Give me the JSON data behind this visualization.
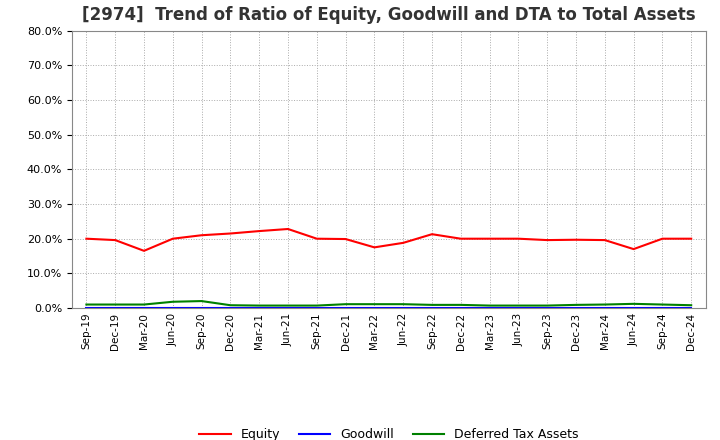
{
  "title": "[2974]  Trend of Ratio of Equity, Goodwill and DTA to Total Assets",
  "x_labels": [
    "Sep-19",
    "Dec-19",
    "Mar-20",
    "Jun-20",
    "Sep-20",
    "Dec-20",
    "Mar-21",
    "Jun-21",
    "Sep-21",
    "Dec-21",
    "Mar-22",
    "Jun-22",
    "Sep-22",
    "Dec-22",
    "Mar-23",
    "Jun-23",
    "Sep-23",
    "Dec-23",
    "Mar-24",
    "Jun-24",
    "Sep-24",
    "Dec-24"
  ],
  "equity": [
    0.2,
    0.196,
    0.165,
    0.2,
    0.21,
    0.215,
    0.222,
    0.228,
    0.2,
    0.199,
    0.175,
    0.188,
    0.213,
    0.2,
    0.2,
    0.2,
    0.196,
    0.197,
    0.196,
    0.17,
    0.2,
    0.2
  ],
  "goodwill": [
    0.0,
    0.0,
    0.0,
    0.0,
    0.0,
    0.0,
    0.0,
    0.0,
    0.0,
    0.0,
    0.0,
    0.0,
    0.0,
    0.0,
    0.0,
    0.0,
    0.0,
    0.0,
    0.0,
    0.0,
    0.0,
    0.0
  ],
  "dta": [
    0.01,
    0.01,
    0.01,
    0.018,
    0.02,
    0.008,
    0.007,
    0.007,
    0.007,
    0.011,
    0.011,
    0.011,
    0.009,
    0.009,
    0.007,
    0.007,
    0.007,
    0.009,
    0.01,
    0.012,
    0.01,
    0.008
  ],
  "equity_color": "#FF0000",
  "goodwill_color": "#0000FF",
  "dta_color": "#008000",
  "ylim": [
    0.0,
    0.8
  ],
  "yticks": [
    0.0,
    0.1,
    0.2,
    0.3,
    0.4,
    0.5,
    0.6,
    0.7,
    0.8
  ],
  "background_color": "#FFFFFF",
  "grid_color": "#AAAAAA",
  "title_fontsize": 12
}
